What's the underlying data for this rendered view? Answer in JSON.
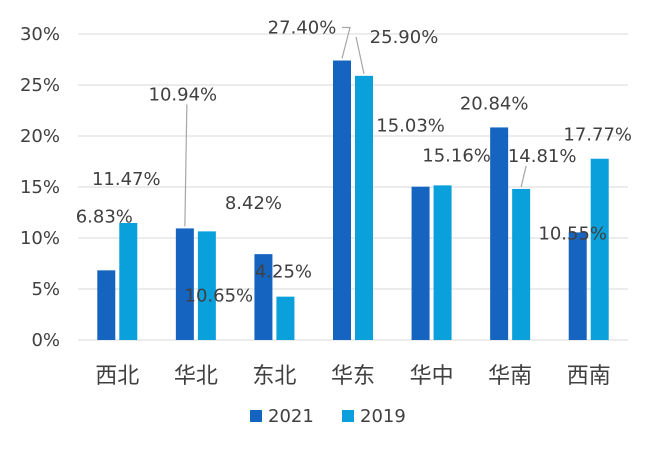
{
  "chart_data": {
    "type": "bar",
    "categories": [
      "西北",
      "华北",
      "东北",
      "华东",
      "华中",
      "华南",
      "西南"
    ],
    "series": [
      {
        "name": "2021",
        "values": [
          6.83,
          10.94,
          8.42,
          27.4,
          15.03,
          20.84,
          10.55
        ],
        "labels": [
          "6.83%",
          "10.94%",
          "8.42%",
          "27.40%",
          "15.03%",
          "20.84%",
          "10.55%"
        ]
      },
      {
        "name": "2019",
        "values": [
          11.47,
          10.65,
          4.25,
          25.9,
          15.16,
          14.81,
          17.77
        ],
        "labels": [
          "11.47%",
          "10.65%",
          "4.25%",
          "25.90%",
          "15.16%",
          "14.81%",
          "17.77%"
        ]
      }
    ],
    "ylim": [
      0,
      30
    ],
    "yticks": [
      0,
      5,
      10,
      15,
      20,
      25,
      30
    ],
    "ytick_labels": [
      "0%",
      "5%",
      "10%",
      "15%",
      "20%",
      "25%",
      "30%"
    ],
    "grid": true,
    "legend_position": "bottom",
    "colors": [
      "#1565c0",
      "#0aa0dc"
    ]
  }
}
